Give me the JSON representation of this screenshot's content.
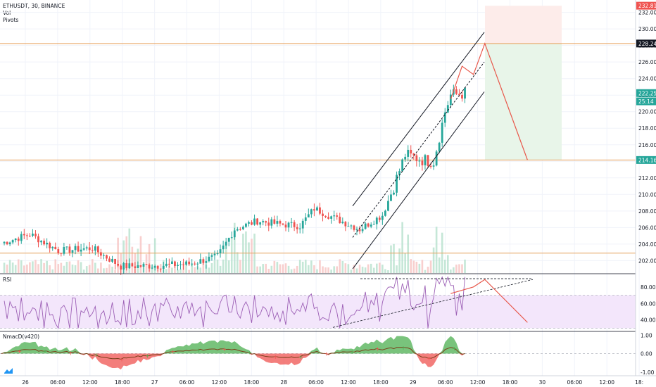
{
  "legend": {
    "symbol": "ETHUSDT, 30, BINANCE",
    "indicators": [
      "Vol",
      "Pivots"
    ]
  },
  "colors": {
    "up": "#26a69a",
    "down": "#ef5350",
    "level_line": "#e6a15c",
    "channel": "#131722",
    "projection": "#e8574a",
    "rsi_line": "#9c5fb5",
    "rsi_band": "#f3e6fb",
    "macd_pos": "#4caf50",
    "macd_neg": "#ef5350",
    "profit_zone": "#e8f5e9",
    "loss_zone": "#fdecea"
  },
  "price_axis": {
    "ticks": [
      "232.00",
      "230.00",
      "228.00",
      "226.00",
      "224.00",
      "222.00",
      "220.00",
      "218.00",
      "216.00",
      "214.00",
      "212.00",
      "210.00",
      "208.00",
      "206.00",
      "204.00",
      "202.00"
    ]
  },
  "price_tags": [
    {
      "text": "232.81",
      "value": 232.81,
      "color": "#ef5350"
    },
    {
      "text": "228.24",
      "value": 228.24,
      "color": "#131722"
    },
    {
      "text": "222.25",
      "value": 222.25,
      "color": "#26a69a"
    },
    {
      "text": "25:14",
      "value": 221.25,
      "color": "#26a69a"
    },
    {
      "text": "214.16",
      "value": 214.16,
      "color": "#26a69a"
    }
  ],
  "levels": [
    228.24,
    214.16,
    202.9
  ],
  "time_axis": {
    "labels": [
      "26",
      "06:00",
      "12:00",
      "18:00",
      "27",
      "06:00",
      "12:00",
      "18:00",
      "28",
      "06:00",
      "12:00",
      "18:00",
      "29",
      "06:00",
      "12:00",
      "18:00",
      "30",
      "06:00",
      "12:00",
      "18:"
    ]
  },
  "rsi": {
    "title": "RSI",
    "ticks": [
      "80.00",
      "60.00",
      "40.00"
    ],
    "levels": [
      70,
      30
    ]
  },
  "macd": {
    "title": "NmacD(v420)",
    "ticks": [
      "1.00",
      "0.00",
      "-1.00"
    ]
  },
  "chart_data": {
    "type": "candlestick",
    "title": "ETHUSDT, 30, BINANCE",
    "y_range": [
      200.5,
      233.5
    ],
    "rsi_range": [
      27,
      96
    ],
    "macd_range": [
      -1.2,
      1.2
    ],
    "projection_path": [
      {
        "bar": 158,
        "price": 221.5
      },
      {
        "bar": 162,
        "price": 225.5
      },
      {
        "bar": 166,
        "price": 224.5
      },
      {
        "bar": 170,
        "price": 228.24
      },
      {
        "bar": 185,
        "price": 214.16
      }
    ],
    "rsi_projection": [
      {
        "bar": 158,
        "rsi": 72
      },
      {
        "bar": 166,
        "rsi": 80
      },
      {
        "bar": 170,
        "rsi": 89
      },
      {
        "bar": 185,
        "rsi": 37
      }
    ],
    "anchor_points": [
      {
        "bar": 0,
        "price": 204.1
      },
      {
        "bar": 10,
        "price": 205.2
      },
      {
        "bar": 20,
        "price": 203.2
      },
      {
        "bar": 32,
        "price": 203.5
      },
      {
        "bar": 42,
        "price": 201.3
      },
      {
        "bar": 55,
        "price": 201.4
      },
      {
        "bar": 66,
        "price": 201.6
      },
      {
        "bar": 76,
        "price": 202.5
      },
      {
        "bar": 82,
        "price": 205.8
      },
      {
        "bar": 90,
        "price": 206.8
      },
      {
        "bar": 98,
        "price": 206.4
      },
      {
        "bar": 105,
        "price": 206.2
      },
      {
        "bar": 110,
        "price": 208.3
      },
      {
        "bar": 118,
        "price": 207.0
      },
      {
        "bar": 126,
        "price": 205.8
      },
      {
        "bar": 134,
        "price": 207.5
      },
      {
        "bar": 138,
        "price": 211.0
      },
      {
        "bar": 142,
        "price": 214.8
      },
      {
        "bar": 148,
        "price": 214.2
      },
      {
        "bar": 152,
        "price": 214.0
      },
      {
        "bar": 156,
        "price": 220.0
      },
      {
        "bar": 158,
        "price": 222.0
      },
      {
        "bar": 163,
        "price": 222.25
      }
    ]
  }
}
